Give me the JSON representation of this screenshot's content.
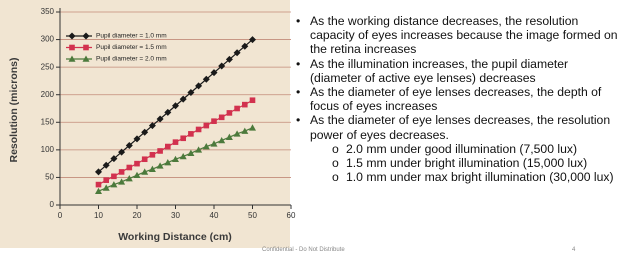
{
  "chart_data": {
    "type": "line",
    "xlabel": "Working Distance (cm)",
    "ylabel": "Resolution (microns)",
    "x": [
      10,
      12,
      14,
      16,
      18,
      20,
      22,
      24,
      26,
      28,
      30,
      32,
      34,
      36,
      38,
      40,
      42,
      44,
      46,
      48,
      50
    ],
    "series": [
      {
        "name": "Pupil diameter = 1.0 mm",
        "color": "#1a1a1a",
        "marker": "diamond",
        "values": [
          60,
          72,
          84,
          96,
          108,
          120,
          132,
          144,
          156,
          168,
          180,
          192,
          204,
          216,
          228,
          240,
          252,
          264,
          276,
          288,
          300
        ]
      },
      {
        "name": "Pupil diameter = 1.5 mm",
        "color": "#d2314e",
        "marker": "square",
        "values": [
          37,
          45,
          52,
          60,
          68,
          75,
          83,
          91,
          98,
          106,
          114,
          121,
          129,
          137,
          144,
          152,
          159,
          167,
          175,
          182,
          190
        ]
      },
      {
        "name": "Pupil diameter = 2.0 mm",
        "color": "#4c7a3c",
        "marker": "triangle",
        "values": [
          25,
          31,
          37,
          42,
          48,
          54,
          60,
          65,
          71,
          77,
          83,
          88,
          94,
          100,
          106,
          111,
          117,
          123,
          129,
          134,
          140
        ]
      }
    ],
    "xlim": [
      0,
      60
    ],
    "xticks": [
      0,
      10,
      20,
      30,
      40,
      50,
      60
    ],
    "ylim": [
      0,
      350
    ],
    "yticks": [
      0,
      50,
      100,
      150,
      200,
      250,
      300,
      350
    ],
    "grid": true
  },
  "bullets": [
    {
      "text": "As the working distance decreases, the resolution capacity of eyes increases because the image formed on the retina increases"
    },
    {
      "text": "As the illumination increases, the pupil diameter (diameter of active eye lenses) decreases"
    },
    {
      "text": "As the diameter of eye lenses decreases, the depth of focus of eyes increases"
    },
    {
      "text": "As the diameter of eye lenses decreases, the resolution power of eyes decreases.",
      "sub": [
        "2.0 mm under good illumination (7,500 lux)",
        "1.5 mm under bright illumination (15,000 lux)",
        "1.0 mm under max bright illumination (30,000 lux)"
      ]
    }
  ],
  "footer": {
    "note": "Confidential - Do Not Distribute",
    "page": "4"
  }
}
